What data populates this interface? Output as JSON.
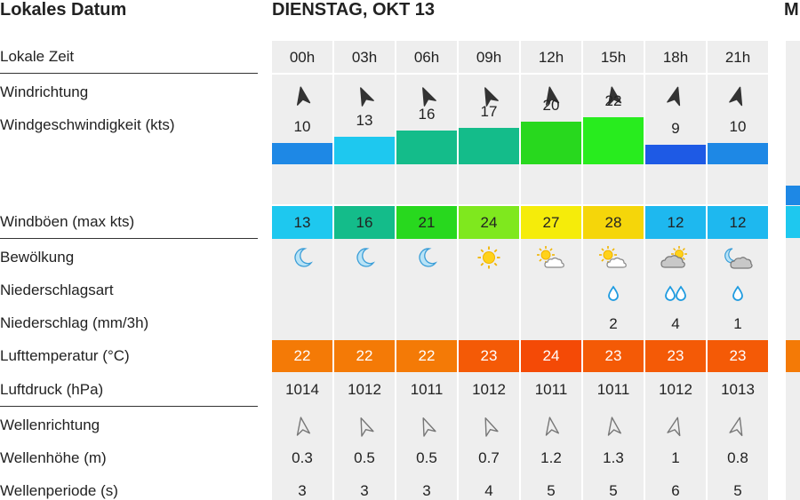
{
  "header": {
    "left_title": "Lokales Datum",
    "day_title": "DIENSTAG, OKT 13",
    "next_day_partial": "M"
  },
  "labels": {
    "local_time": "Lokale Zeit",
    "wind_direction": "Windrichtung",
    "wind_speed": "Windgeschwindigkeit  (kts)",
    "wind_gusts": "Windböen  (max kts)",
    "cloud_cover": "Bewölkung",
    "precip_type": "Niederschlagsart",
    "precip_amount": "Niederschlag  (mm/3h)",
    "air_temp": "Lufttemperatur  (°C)",
    "air_pressure": "Luftdruck  (hPa)",
    "wave_direction": "Wellenrichtung",
    "wave_height": "Wellenhöhe  (m)",
    "wave_period": "Wellenperiode  (s)"
  },
  "hours": [
    {
      "time": "00h",
      "wind_dir": "n-dark",
      "wind_speed": "10",
      "wind_level": 0.1,
      "wind_color": "#1e88e5",
      "gust": "13",
      "gust_color": "#1ec8ef",
      "cloud": "moon-icon",
      "precip_type": "",
      "precip": "",
      "temp": "22",
      "temp_color": "#f47a06",
      "pressure": "1014",
      "wave_height": "0.3",
      "wave_period": "3"
    },
    {
      "time": "03h",
      "wind_dir": "nw-dark",
      "wind_speed": "13",
      "wind_level": 0.13,
      "wind_color": "#1ec8ef",
      "gust": "16",
      "gust_color": "#14bc8a",
      "cloud": "moon-icon",
      "precip_type": "",
      "precip": "",
      "temp": "22",
      "temp_color": "#f47a06",
      "pressure": "1012",
      "wave_height": "0.5",
      "wave_period": "3"
    },
    {
      "time": "06h",
      "wind_dir": "nw-dark",
      "wind_speed": "16",
      "wind_level": 0.16,
      "wind_color": "#14bc8a",
      "gust": "21",
      "gust_color": "#28d81e",
      "cloud": "moon-icon",
      "precip_type": "",
      "precip": "",
      "temp": "22",
      "temp_color": "#f47a06",
      "pressure": "1011",
      "wave_height": "0.5",
      "wave_period": "3"
    },
    {
      "time": "09h",
      "wind_dir": "nw-dark",
      "wind_speed": "17",
      "wind_level": 0.17,
      "wind_color": "#14bc8a",
      "gust": "24",
      "gust_color": "#7fe81e",
      "cloud": "sun-icon",
      "precip_type": "",
      "precip": "",
      "temp": "23",
      "temp_color": "#f45a06",
      "pressure": "1012",
      "wave_height": "0.7",
      "wave_period": "4"
    },
    {
      "time": "12h",
      "wind_dir": "n-dark",
      "wind_speed": "20",
      "wind_level": 0.2,
      "wind_color": "#28d81e",
      "gust": "27",
      "gust_color": "#f5ec0a",
      "cloud": "sun-cloud-icon",
      "precip_type": "",
      "precip": "",
      "temp": "24",
      "temp_color": "#f44a06",
      "pressure": "1011",
      "wave_height": "1.2",
      "wave_period": "5"
    },
    {
      "time": "15h",
      "wind_dir": "n-dark",
      "wind_speed": "22",
      "wind_level": 0.22,
      "wind_color": "#28ec1e",
      "gust": "28",
      "gust_color": "#f5d60a",
      "cloud": "sun-cloud-icon",
      "precip_type": "drop-icon",
      "precip": "2",
      "temp": "23",
      "temp_color": "#f45a06",
      "pressure": "1011",
      "wave_height": "1.3",
      "wave_period": "5"
    },
    {
      "time": "18h",
      "wind_dir": "ne-dark",
      "wind_speed": "9",
      "wind_level": 0.09,
      "wind_color": "#1e5ae5",
      "gust": "12",
      "gust_color": "#1eb8ef",
      "cloud": "cloudy-sun-icon",
      "precip_type": "drops-icon",
      "precip": "4",
      "temp": "23",
      "temp_color": "#f45a06",
      "pressure": "1012",
      "wave_height": "1",
      "wave_period": "6"
    },
    {
      "time": "21h",
      "wind_dir": "ne-dark",
      "wind_speed": "10",
      "wind_level": 0.1,
      "wind_color": "#1e88e5",
      "gust": "12",
      "gust_color": "#1eb8ef",
      "cloud": "moon-cloud-icon",
      "precip_type": "drop-icon",
      "precip": "1",
      "temp": "23",
      "temp_color": "#f45a06",
      "pressure": "1013",
      "wave_height": "0.8",
      "wave_period": "5"
    }
  ]
}
